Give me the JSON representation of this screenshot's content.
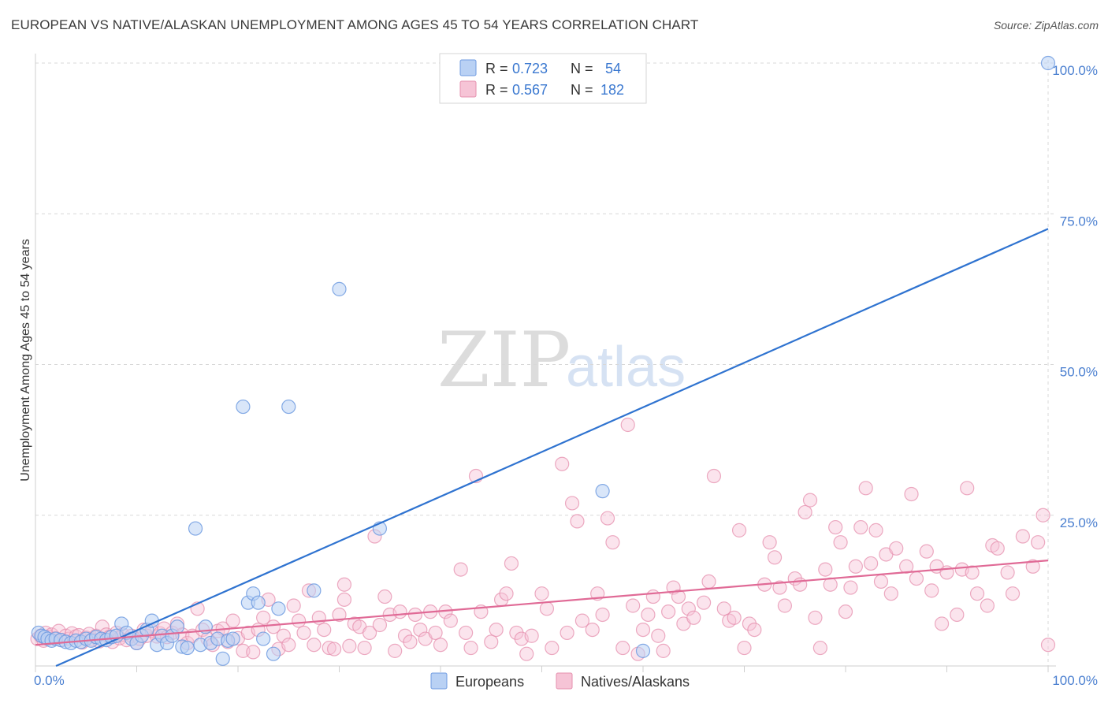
{
  "title": "EUROPEAN VS NATIVE/ALASKAN UNEMPLOYMENT AMONG AGES 45 TO 54 YEARS CORRELATION CHART",
  "source": "Source: ZipAtlas.com",
  "watermark": {
    "part1": "ZIP",
    "part2": "atlas"
  },
  "colors": {
    "europeans_fill": "#b9d1f4",
    "europeans_stroke": "#6f9be0",
    "europeans_line": "#2f73d0",
    "natives_fill": "#f6c4d6",
    "natives_stroke": "#e58fae",
    "natives_line": "#e06a96",
    "grid": "#d8d8d8",
    "tick_text": "#4a7fd0"
  },
  "legend": {
    "row1": {
      "r_label": "R =",
      "r_value": "0.723",
      "n_label": "N =",
      "n_value": "54"
    },
    "row2": {
      "r_label": "R =",
      "r_value": "0.567",
      "n_label": "N =",
      "n_value": "182"
    }
  },
  "chart_data": {
    "type": "scatter",
    "title": "EUROPEAN VS NATIVE/ALASKAN UNEMPLOYMENT AMONG AGES 45 TO 54 YEARS CORRELATION CHART",
    "xlabel": "",
    "ylabel": "Unemployment Among Ages 45 to 54 years",
    "xlim": [
      0,
      100
    ],
    "ylim": [
      0,
      100
    ],
    "x_tick_labels": [
      "0.0%",
      "100.0%"
    ],
    "y_tick_labels": [
      "25.0%",
      "50.0%",
      "75.0%",
      "100.0%"
    ],
    "y_tick_values": [
      25,
      50,
      75,
      100
    ],
    "legend_position": "bottom-center",
    "series": [
      {
        "name": "Europeans",
        "r": 0.723,
        "n": 54,
        "trendline": {
          "x": [
            0,
            100
          ],
          "y": [
            -1.5,
            72.5
          ]
        },
        "points": [
          [
            0.3,
            5.5
          ],
          [
            0.6,
            5.0
          ],
          [
            0.9,
            4.8
          ],
          [
            1.2,
            4.5
          ],
          [
            1.6,
            4.2
          ],
          [
            2.0,
            4.5
          ],
          [
            2.5,
            4.3
          ],
          [
            3.0,
            4.0
          ],
          [
            3.5,
            3.8
          ],
          [
            4.0,
            4.2
          ],
          [
            4.5,
            4.0
          ],
          [
            5.0,
            4.5
          ],
          [
            5.5,
            4.2
          ],
          [
            6.0,
            4.8
          ],
          [
            6.5,
            4.5
          ],
          [
            7.0,
            4.3
          ],
          [
            7.5,
            4.8
          ],
          [
            8.0,
            5.0
          ],
          [
            8.5,
            7.0
          ],
          [
            9.0,
            5.5
          ],
          [
            9.5,
            4.5
          ],
          [
            10.0,
            3.8
          ],
          [
            10.5,
            5.0
          ],
          [
            11.0,
            6.0
          ],
          [
            11.5,
            7.5
          ],
          [
            12.0,
            3.5
          ],
          [
            12.5,
            5.0
          ],
          [
            13.0,
            3.8
          ],
          [
            13.5,
            5.0
          ],
          [
            14.0,
            6.5
          ],
          [
            14.5,
            3.2
          ],
          [
            15.0,
            3.0
          ],
          [
            15.8,
            22.8
          ],
          [
            16.3,
            3.5
          ],
          [
            16.8,
            6.5
          ],
          [
            17.3,
            3.8
          ],
          [
            18.0,
            4.5
          ],
          [
            18.5,
            1.2
          ],
          [
            19.0,
            4.2
          ],
          [
            19.5,
            4.5
          ],
          [
            20.5,
            43.0
          ],
          [
            21.0,
            10.5
          ],
          [
            21.5,
            12.0
          ],
          [
            22.0,
            10.5
          ],
          [
            22.5,
            4.5
          ],
          [
            23.5,
            2.0
          ],
          [
            24.0,
            9.5
          ],
          [
            25.0,
            43.0
          ],
          [
            27.5,
            12.5
          ],
          [
            30.0,
            62.5
          ],
          [
            34.0,
            22.8
          ],
          [
            56.0,
            29.0
          ],
          [
            60.0,
            2.5
          ],
          [
            100.0,
            100.0
          ]
        ]
      },
      {
        "name": "Natives/Alaskans",
        "r": 0.567,
        "n": 182,
        "trendline": {
          "x": [
            0,
            100
          ],
          "y": [
            3.5,
            17.5
          ]
        },
        "points": [
          [
            0.2,
            4.5
          ],
          [
            0.5,
            5.0
          ],
          [
            0.8,
            4.2
          ],
          [
            1.0,
            5.5
          ],
          [
            1.3,
            4.8
          ],
          [
            1.6,
            5.2
          ],
          [
            2.0,
            4.6
          ],
          [
            2.3,
            5.8
          ],
          [
            2.6,
            4.3
          ],
          [
            3.0,
            5.0
          ],
          [
            3.3,
            4.5
          ],
          [
            3.6,
            5.4
          ],
          [
            4.0,
            4.9
          ],
          [
            4.3,
            5.1
          ],
          [
            4.6,
            3.9
          ],
          [
            5.0,
            4.7
          ],
          [
            5.3,
            5.3
          ],
          [
            5.6,
            4.4
          ],
          [
            6.0,
            5.0
          ],
          [
            6.3,
            4.1
          ],
          [
            6.6,
            6.5
          ],
          [
            7.0,
            5.2
          ],
          [
            7.3,
            4.8
          ],
          [
            7.6,
            4.0
          ],
          [
            8.0,
            5.5
          ],
          [
            8.3,
            4.6
          ],
          [
            8.6,
            5.2
          ],
          [
            9.0,
            4.3
          ],
          [
            9.5,
            5.0
          ],
          [
            10.0,
            3.8
          ],
          [
            10.3,
            4.5
          ],
          [
            10.7,
            6.0
          ],
          [
            11.0,
            5.0
          ],
          [
            11.5,
            5.8
          ],
          [
            12.0,
            4.9
          ],
          [
            12.3,
            5.4
          ],
          [
            12.7,
            6.2
          ],
          [
            13.0,
            4.8
          ],
          [
            13.5,
            5.5
          ],
          [
            14.0,
            7.0
          ],
          [
            14.5,
            5.2
          ],
          [
            15.0,
            3.8
          ],
          [
            15.5,
            5.0
          ],
          [
            16.0,
            9.5
          ],
          [
            16.5,
            6.0
          ],
          [
            17.0,
            4.5
          ],
          [
            17.5,
            3.5
          ],
          [
            18.0,
            5.8
          ],
          [
            18.5,
            6.2
          ],
          [
            19.0,
            4.0
          ],
          [
            19.5,
            7.5
          ],
          [
            20.0,
            4.6
          ],
          [
            20.5,
            2.5
          ],
          [
            21.0,
            5.5
          ],
          [
            21.5,
            2.3
          ],
          [
            22.0,
            6.0
          ],
          [
            22.5,
            8.0
          ],
          [
            23.0,
            11.0
          ],
          [
            23.5,
            6.5
          ],
          [
            24.0,
            2.8
          ],
          [
            24.5,
            5.0
          ],
          [
            25.0,
            3.5
          ],
          [
            25.5,
            10.0
          ],
          [
            26.0,
            7.5
          ],
          [
            26.5,
            5.5
          ],
          [
            27.0,
            12.5
          ],
          [
            27.5,
            3.5
          ],
          [
            28.0,
            8.0
          ],
          [
            28.5,
            6.0
          ],
          [
            29.0,
            3.0
          ],
          [
            29.5,
            2.8
          ],
          [
            30.0,
            8.5
          ],
          [
            30.5,
            11.0
          ],
          [
            31.0,
            3.3
          ],
          [
            31.5,
            7.0
          ],
          [
            32.0,
            6.5
          ],
          [
            32.5,
            3.0
          ],
          [
            33.0,
            5.5
          ],
          [
            33.5,
            21.5
          ],
          [
            34.0,
            6.8
          ],
          [
            34.5,
            11.5
          ],
          [
            35.0,
            8.5
          ],
          [
            35.5,
            2.5
          ],
          [
            36.0,
            9.0
          ],
          [
            36.5,
            5.0
          ],
          [
            37.0,
            4.0
          ],
          [
            37.5,
            8.5
          ],
          [
            38.0,
            6.0
          ],
          [
            38.5,
            4.5
          ],
          [
            39.0,
            9.0
          ],
          [
            39.5,
            5.5
          ],
          [
            40.0,
            3.5
          ],
          [
            40.5,
            9.0
          ],
          [
            41.0,
            7.5
          ],
          [
            42.0,
            16.0
          ],
          [
            42.5,
            5.5
          ],
          [
            43.0,
            3.0
          ],
          [
            43.5,
            31.5
          ],
          [
            44.0,
            9.0
          ],
          [
            45.0,
            4.0
          ],
          [
            45.5,
            6.0
          ],
          [
            46.0,
            11.0
          ],
          [
            46.5,
            12.0
          ],
          [
            47.0,
            17.0
          ],
          [
            47.5,
            5.5
          ],
          [
            48.0,
            4.5
          ],
          [
            48.5,
            2.0
          ],
          [
            49.0,
            5.0
          ],
          [
            50.0,
            12.0
          ],
          [
            50.5,
            9.5
          ],
          [
            51.0,
            3.0
          ],
          [
            52.0,
            33.5
          ],
          [
            52.5,
            5.5
          ],
          [
            53.0,
            27.0
          ],
          [
            53.5,
            24.0
          ],
          [
            54.0,
            7.5
          ],
          [
            55.0,
            6.0
          ],
          [
            55.5,
            12.0
          ],
          [
            56.0,
            8.5
          ],
          [
            56.5,
            24.5
          ],
          [
            57.0,
            20.5
          ],
          [
            58.0,
            3.0
          ],
          [
            58.5,
            40.0
          ],
          [
            59.0,
            10.0
          ],
          [
            59.5,
            2.0
          ],
          [
            60.0,
            6.0
          ],
          [
            60.5,
            8.5
          ],
          [
            61.0,
            11.5
          ],
          [
            61.5,
            5.0
          ],
          [
            62.0,
            2.5
          ],
          [
            62.5,
            9.0
          ],
          [
            63.0,
            13.0
          ],
          [
            63.5,
            11.5
          ],
          [
            64.0,
            7.0
          ],
          [
            64.5,
            9.5
          ],
          [
            65.0,
            8.0
          ],
          [
            66.0,
            10.5
          ],
          [
            66.5,
            14.0
          ],
          [
            67.0,
            31.5
          ],
          [
            68.0,
            9.5
          ],
          [
            68.5,
            7.5
          ],
          [
            69.0,
            8.0
          ],
          [
            69.5,
            22.5
          ],
          [
            70.0,
            3.0
          ],
          [
            70.5,
            7.0
          ],
          [
            71.0,
            6.0
          ],
          [
            72.0,
            13.5
          ],
          [
            72.5,
            20.5
          ],
          [
            73.0,
            18.0
          ],
          [
            73.5,
            13.0
          ],
          [
            74.0,
            10.0
          ],
          [
            75.0,
            14.5
          ],
          [
            75.5,
            13.5
          ],
          [
            76.0,
            25.5
          ],
          [
            76.5,
            27.5
          ],
          [
            77.0,
            8.0
          ],
          [
            77.5,
            3.0
          ],
          [
            78.0,
            16.0
          ],
          [
            78.5,
            13.5
          ],
          [
            79.0,
            23.0
          ],
          [
            79.5,
            20.5
          ],
          [
            80.0,
            9.0
          ],
          [
            80.5,
            13.0
          ],
          [
            81.0,
            16.5
          ],
          [
            81.5,
            23.0
          ],
          [
            82.0,
            29.5
          ],
          [
            82.5,
            17.0
          ],
          [
            83.0,
            22.5
          ],
          [
            83.5,
            14.0
          ],
          [
            84.0,
            18.5
          ],
          [
            84.5,
            12.0
          ],
          [
            85.0,
            19.5
          ],
          [
            86.0,
            16.5
          ],
          [
            86.5,
            28.5
          ],
          [
            87.0,
            14.5
          ],
          [
            88.0,
            19.0
          ],
          [
            88.5,
            12.5
          ],
          [
            89.0,
            16.5
          ],
          [
            89.5,
            7.0
          ],
          [
            90.0,
            15.5
          ],
          [
            91.0,
            8.5
          ],
          [
            91.5,
            16.0
          ],
          [
            92.0,
            29.5
          ],
          [
            92.5,
            15.5
          ],
          [
            93.0,
            12.0
          ],
          [
            94.0,
            10.0
          ],
          [
            94.5,
            20.0
          ],
          [
            95.0,
            19.5
          ],
          [
            96.0,
            15.5
          ],
          [
            96.5,
            12.0
          ],
          [
            97.5,
            21.5
          ],
          [
            98.5,
            16.5
          ],
          [
            99.0,
            20.5
          ],
          [
            99.5,
            25.0
          ],
          [
            100.0,
            3.5
          ],
          [
            30.5,
            13.5
          ]
        ]
      }
    ]
  },
  "bottom_legend": {
    "europeans": "Europeans",
    "natives": "Natives/Alaskans"
  }
}
